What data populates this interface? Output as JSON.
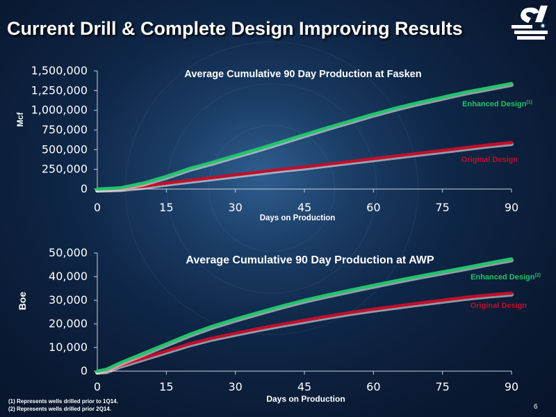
{
  "header": {
    "title": "Current Drill & Complete Design Improving Results",
    "logo_icon": "company-logo-icon"
  },
  "footnotes": [
    "(1) Represents wells drilled prior to 1Q14.",
    "(2) Represents wells drilled prior 2Q14."
  ],
  "page_number": "6",
  "colors": {
    "enhanced": "#22c46a",
    "original": "#c0102a",
    "title_text": "#ffffff"
  },
  "chart_data": [
    {
      "type": "line",
      "title": "Average Cumulative 90 Day Production at Fasken",
      "xlabel": "Days on Production",
      "ylabel": "Mcf",
      "xlim": [
        0,
        90
      ],
      "ylim": [
        0,
        1500000
      ],
      "x_ticks": [
        "0",
        "15",
        "30",
        "45",
        "60",
        "75",
        "90"
      ],
      "y_ticks": [
        "0",
        "250,000",
        "500,000",
        "750,000",
        "1,000,000",
        "1,250,000",
        "1,500,000"
      ],
      "x": [
        0,
        5,
        10,
        15,
        20,
        25,
        30,
        35,
        40,
        45,
        50,
        55,
        60,
        65,
        70,
        75,
        80,
        85,
        90
      ],
      "series": [
        {
          "name": "Enhanced Design",
          "superscript": "(1)",
          "values": [
            0,
            15000,
            75000,
            160000,
            260000,
            340000,
            425000,
            510000,
            600000,
            690000,
            780000,
            865000,
            950000,
            1030000,
            1100000,
            1165000,
            1230000,
            1285000,
            1340000
          ]
        },
        {
          "name": "Original Design",
          "superscript": "",
          "values": [
            0,
            5000,
            35000,
            75000,
            110000,
            145000,
            180000,
            215000,
            250000,
            280000,
            315000,
            350000,
            385000,
            420000,
            455000,
            490000,
            525000,
            560000,
            590000
          ]
        }
      ]
    },
    {
      "type": "line",
      "title": "Average Cumulative 90 Day Production at AWP",
      "xlabel": "Days on Production",
      "ylabel": "Boe",
      "xlim": [
        0,
        90
      ],
      "ylim": [
        0,
        50000
      ],
      "x_ticks": [
        "0",
        "15",
        "30",
        "45",
        "60",
        "75",
        "90"
      ],
      "y_ticks": [
        "0",
        "10,000",
        "20,000",
        "30,000",
        "40,000",
        "50,000"
      ],
      "x": [
        0,
        2,
        5,
        10,
        15,
        20,
        25,
        30,
        35,
        40,
        45,
        50,
        55,
        60,
        65,
        70,
        75,
        80,
        85,
        90
      ],
      "series": [
        {
          "name": "Enhanced Design",
          "superscript": "(2)",
          "values": [
            0,
            800,
            3500,
            7500,
            11500,
            15500,
            19000,
            22000,
            24800,
            27500,
            30000,
            32200,
            34300,
            36300,
            38300,
            40200,
            42000,
            43800,
            45700,
            47500
          ]
        },
        {
          "name": "Original Design",
          "superscript": "",
          "values": [
            0,
            200,
            2500,
            5500,
            8500,
            11500,
            14000,
            16000,
            18000,
            19800,
            21500,
            23200,
            24800,
            26200,
            27500,
            28800,
            30000,
            31200,
            32200,
            33000
          ]
        }
      ]
    }
  ]
}
